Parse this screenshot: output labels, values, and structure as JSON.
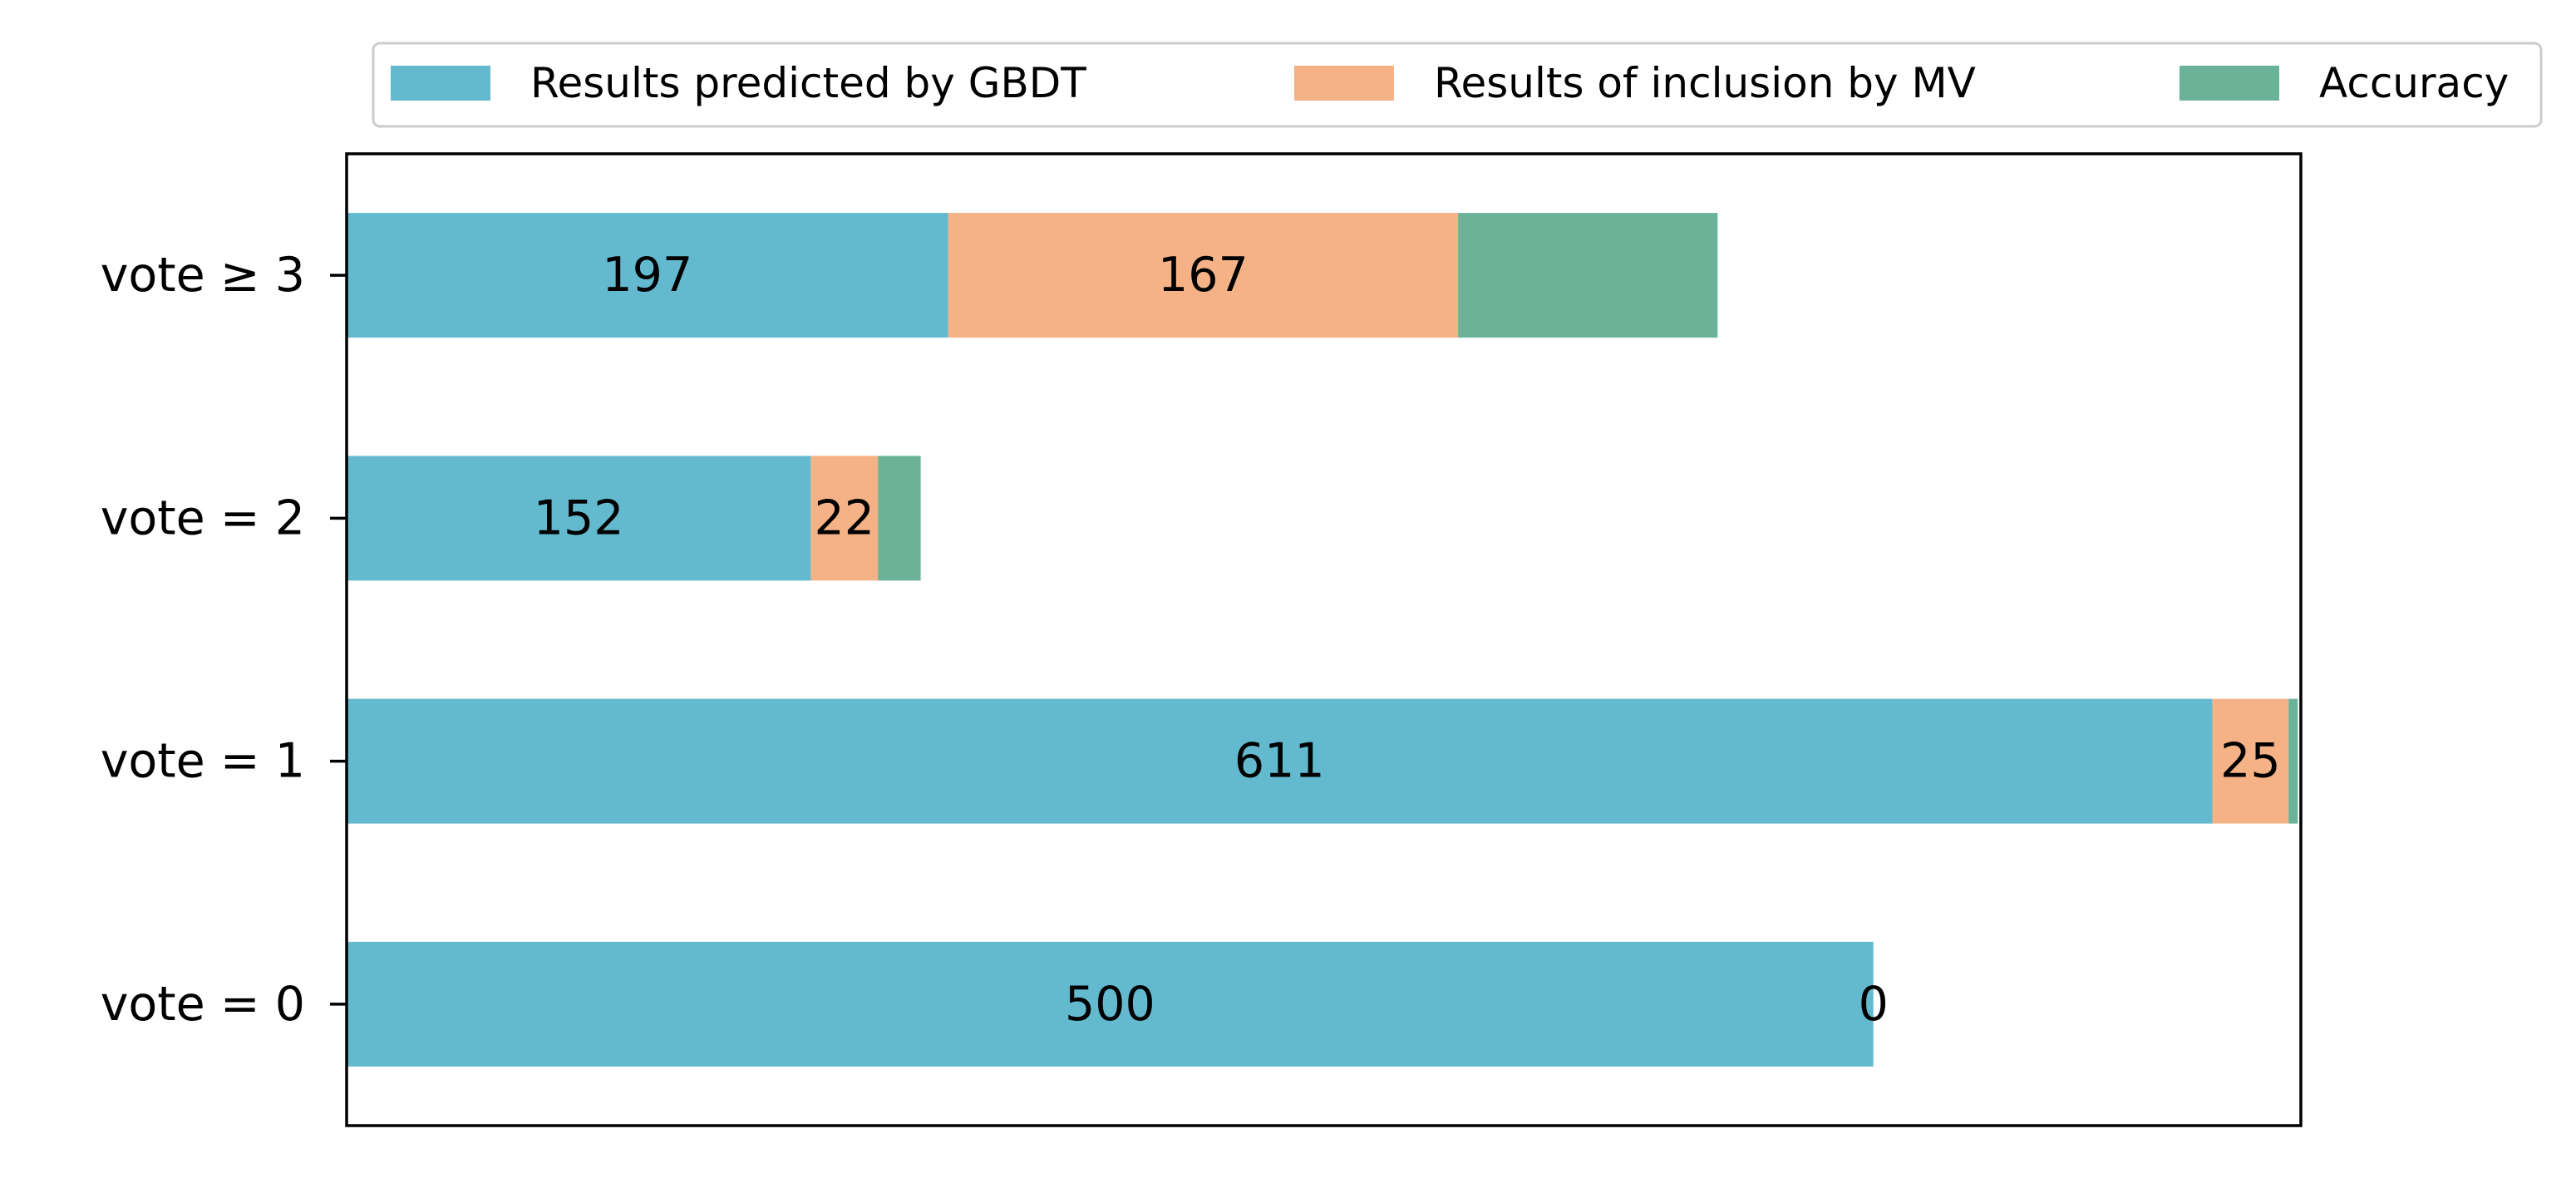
{
  "chart_data": {
    "type": "bar",
    "orientation": "horizontal",
    "stacked": true,
    "categories": [
      "vote = 0",
      "vote = 1",
      "vote = 2",
      "vote ≥ 3"
    ],
    "series": [
      {
        "name": "Results predicted by GBDT",
        "color": "#63bacf",
        "values": [
          500,
          611,
          152,
          197
        ],
        "labels": [
          "500",
          "611",
          "152",
          "197"
        ]
      },
      {
        "name": "Results of inclusion by MV",
        "color": "#f4b286",
        "values": [
          0,
          25,
          22,
          167
        ],
        "labels": [
          "0",
          "25",
          "22",
          "167"
        ]
      },
      {
        "name": "Accuracy",
        "color": "#6ab398",
        "values": [
          0,
          3,
          14,
          85
        ],
        "labels": [
          "",
          "",
          "",
          ""
        ]
      }
    ],
    "xlim": [
      0,
      640
    ],
    "x_axis_visible": false,
    "grid": false,
    "legend_placement": "top, outside plot",
    "title": "",
    "xlabel": "",
    "ylabel": ""
  }
}
